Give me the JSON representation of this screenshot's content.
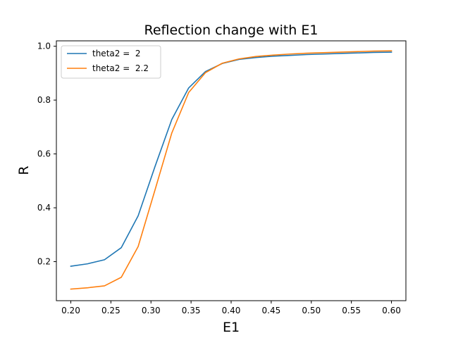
{
  "chart_data": {
    "type": "line",
    "title": "Reflection change with E1",
    "xlabel": "E1",
    "ylabel": "R",
    "xlim": [
      0.182,
      0.618
    ],
    "ylim": [
      0.055,
      1.02
    ],
    "xticks": [
      "0.20",
      "0.25",
      "0.30",
      "0.35",
      "0.40",
      "0.45",
      "0.50",
      "0.55",
      "0.60"
    ],
    "yticks": [
      "0.2",
      "0.4",
      "0.6",
      "0.8",
      "1.0"
    ],
    "grid": false,
    "legend_position": "top-left",
    "x": [
      0.2,
      0.221,
      0.242,
      0.263,
      0.284,
      0.305,
      0.326,
      0.347,
      0.368,
      0.389,
      0.41,
      0.431,
      0.452,
      0.473,
      0.494,
      0.515,
      0.536,
      0.557,
      0.578,
      0.6
    ],
    "series": [
      {
        "name": "theta2 =  2",
        "color": "#1f77b4",
        "values": [
          0.183,
          0.192,
          0.207,
          0.252,
          0.37,
          0.553,
          0.728,
          0.845,
          0.906,
          0.936,
          0.951,
          0.958,
          0.963,
          0.966,
          0.969,
          0.971,
          0.973,
          0.975,
          0.977,
          0.978
        ]
      },
      {
        "name": "theta2 =  2.2",
        "color": "#ff7f0e",
        "values": [
          0.098,
          0.103,
          0.11,
          0.142,
          0.256,
          0.466,
          0.678,
          0.828,
          0.902,
          0.937,
          0.953,
          0.962,
          0.967,
          0.971,
          0.974,
          0.976,
          0.978,
          0.98,
          0.982,
          0.983
        ]
      }
    ]
  }
}
